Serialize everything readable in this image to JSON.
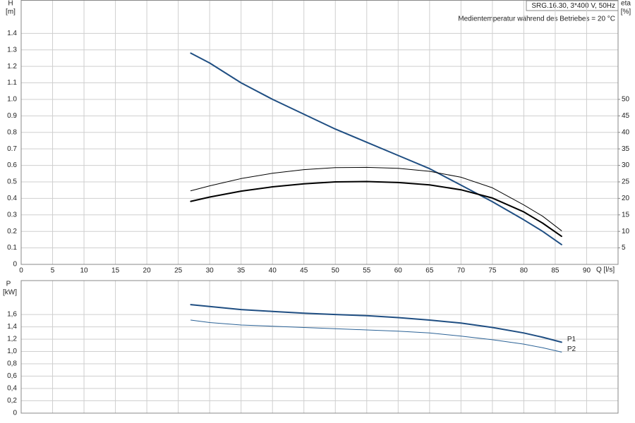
{
  "chart_data": [
    {
      "type": "line",
      "header": "SRG.16.30, 3*400 V, 50Hz",
      "subtitle": "Medientemperatur während des Betriebes = 20 °C",
      "y_label": "H",
      "y_unit": "[m]",
      "y2_label": "eta",
      "y2_unit": "[%]",
      "x_label": "Q [l/s]",
      "xlim": [
        0,
        95
      ],
      "xticks": [
        0,
        5,
        10,
        15,
        20,
        25,
        30,
        35,
        40,
        45,
        50,
        55,
        60,
        65,
        70,
        75,
        80,
        85,
        90
      ],
      "ylim": [
        0,
        1.6
      ],
      "yticks": [
        0,
        0.1,
        0.2,
        0.3,
        0.4,
        0.5,
        0.6,
        0.7,
        0.8,
        0.9,
        {
          "value": 1,
          "label": "1.0"
        },
        1.1,
        1.2,
        1.3,
        1.4
      ],
      "y2lim": [
        0,
        80
      ],
      "y2ticks": [
        5,
        10,
        15,
        20,
        25,
        30,
        35,
        40,
        45,
        50
      ],
      "grid": true,
      "series": [
        {
          "color": "#1f4e82",
          "width": 2,
          "x": [
            27,
            30,
            35,
            40,
            45,
            50,
            55,
            60,
            65,
            70,
            75,
            80,
            83,
            86
          ],
          "values": [
            1.28,
            1.22,
            1.1,
            1.0,
            0.91,
            0.82,
            0.74,
            0.66,
            0.58,
            0.48,
            0.38,
            0.27,
            0.2,
            0.12
          ]
        },
        {
          "color": "#000000",
          "width": 1,
          "axis": "y2",
          "x": [
            27,
            30,
            35,
            40,
            45,
            50,
            55,
            60,
            65,
            70,
            75,
            80,
            83,
            86
          ],
          "values": [
            22.3,
            23.8,
            26.0,
            27.6,
            28.7,
            29.3,
            29.4,
            29.1,
            28.2,
            26.4,
            23.2,
            18.0,
            14.6,
            10.2
          ]
        },
        {
          "color": "#000000",
          "width": 2,
          "axis": "y2",
          "x": [
            27,
            30,
            35,
            40,
            45,
            50,
            55,
            60,
            65,
            70,
            75,
            80,
            83,
            86
          ],
          "values": [
            19.1,
            20.4,
            22.2,
            23.5,
            24.4,
            25.0,
            25.1,
            24.8,
            24.1,
            22.6,
            20.1,
            15.9,
            12.5,
            8.5
          ]
        }
      ]
    },
    {
      "type": "line",
      "y_label": "P",
      "y_unit": "[kW]",
      "xlim": [
        0,
        95
      ],
      "xticks": [
        0,
        5,
        10,
        15,
        20,
        25,
        30,
        35,
        40,
        45,
        50,
        55,
        60,
        65,
        70,
        75,
        80,
        85,
        90
      ],
      "ylim": [
        0,
        2.15
      ],
      "yticks": [
        0,
        {
          "value": 0.2,
          "label": "0,2"
        },
        {
          "value": 0.4,
          "label": "0,4"
        },
        {
          "value": 0.6,
          "label": "0,6"
        },
        {
          "value": 0.8,
          "label": "0,8"
        },
        {
          "value": 1,
          "label": "1,0"
        },
        {
          "value": 1.2,
          "label": "1,2"
        },
        {
          "value": 1.4,
          "label": "1,4"
        },
        {
          "value": 1.6,
          "label": "1,6"
        }
      ],
      "grid": true,
      "series": [
        {
          "name": "P1",
          "color": "#1f4e82",
          "width": 2,
          "x": [
            27,
            30,
            35,
            40,
            45,
            50,
            55,
            60,
            65,
            70,
            75,
            80,
            83,
            86
          ],
          "values": [
            1.76,
            1.73,
            1.68,
            1.65,
            1.62,
            1.6,
            1.58,
            1.55,
            1.51,
            1.46,
            1.39,
            1.3,
            1.23,
            1.15
          ]
        },
        {
          "name": "P2",
          "color": "#2b6296",
          "width": 1,
          "x": [
            27,
            30,
            35,
            40,
            45,
            50,
            55,
            60,
            65,
            70,
            75,
            80,
            83,
            86
          ],
          "values": [
            1.51,
            1.47,
            1.43,
            1.41,
            1.39,
            1.37,
            1.35,
            1.33,
            1.3,
            1.25,
            1.19,
            1.12,
            1.06,
            0.99
          ]
        }
      ]
    }
  ]
}
